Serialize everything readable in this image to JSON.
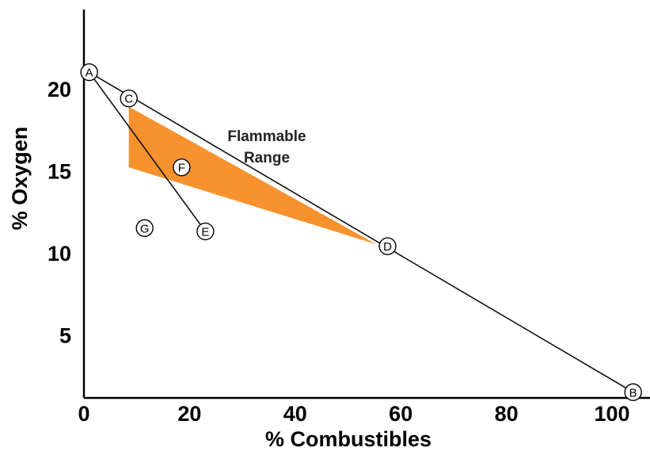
{
  "chart_data": {
    "type": "line",
    "xlabel": "% Combustibles",
    "ylabel": "% Oxygen",
    "xlim": [
      0,
      110
    ],
    "ylim": [
      0,
      28
    ],
    "x_ticks": [
      0,
      20,
      40,
      60,
      80,
      100
    ],
    "y_ticks": [
      5,
      10,
      15,
      20
    ],
    "points": [
      {
        "label": "A",
        "x": 1,
        "y": 21
      },
      {
        "label": "C",
        "x": 8.5,
        "y": 19.4
      },
      {
        "label": "F",
        "x": 18.5,
        "y": 15.2
      },
      {
        "label": "G",
        "x": 11.5,
        "y": 11.5
      },
      {
        "label": "E",
        "x": 23,
        "y": 11.3
      },
      {
        "label": "D",
        "x": 57.5,
        "y": 10.4
      },
      {
        "label": "B",
        "x": 104,
        "y": 1.5
      }
    ],
    "lines": [
      {
        "from": "A",
        "to": "B"
      },
      {
        "from": "A",
        "to": "E"
      }
    ],
    "flammable_region": {
      "label": "Flammable Range",
      "color": "#f7922f",
      "vertices": [
        [
          8.5,
          18.9
        ],
        [
          55.5,
          10.5
        ],
        [
          8.5,
          15.2
        ]
      ]
    }
  }
}
